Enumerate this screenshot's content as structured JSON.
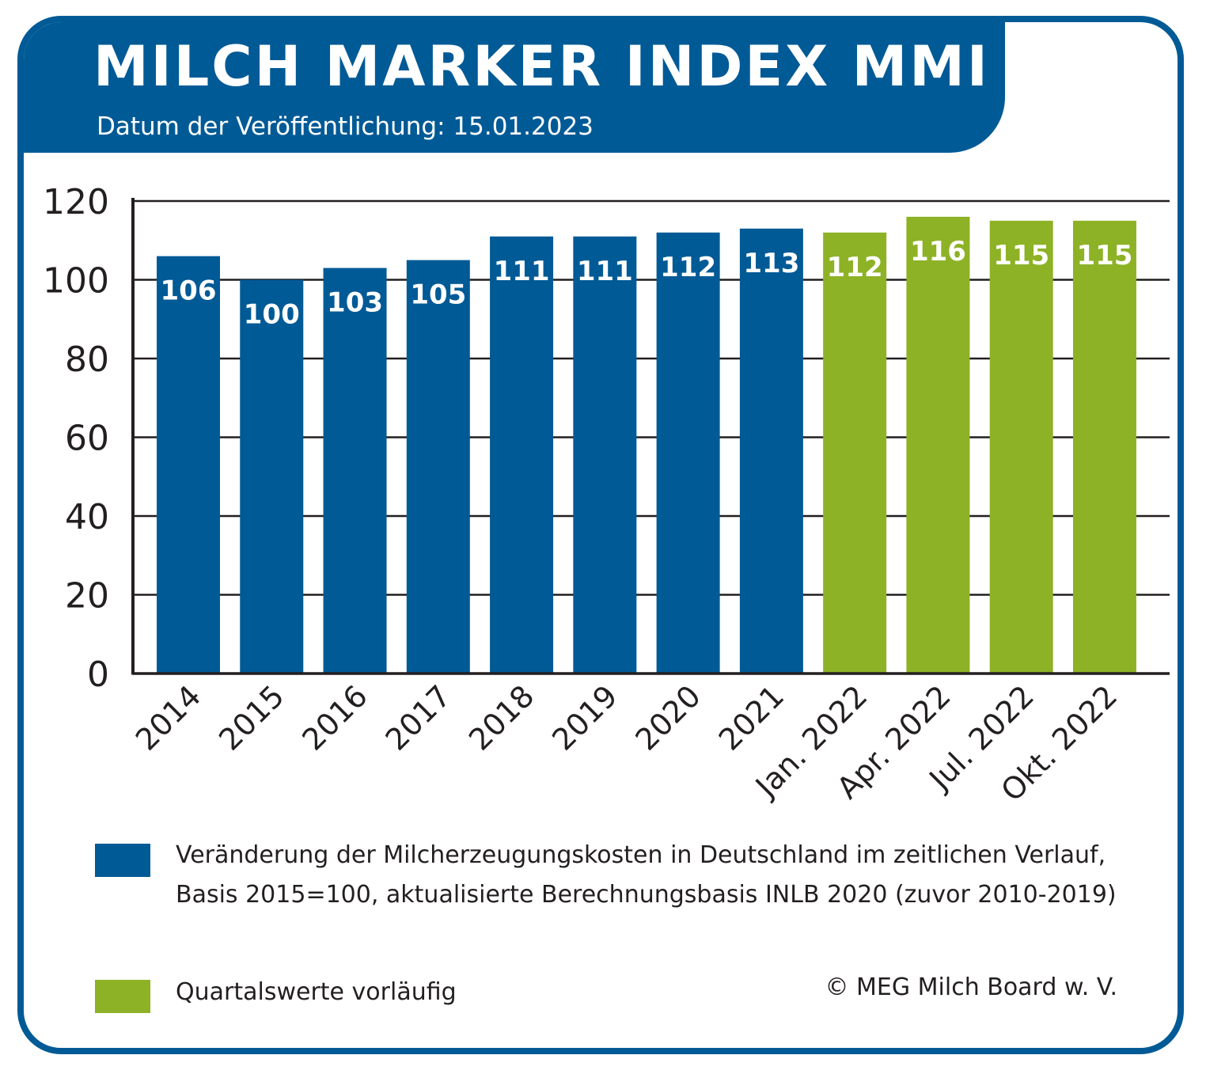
{
  "header": {
    "title": "MILCH MARKER INDEX MMI",
    "subtitle": "Datum der Veröffentlichung: 15.01.2023"
  },
  "chart_data": {
    "type": "bar",
    "categories": [
      "2014",
      "2015",
      "2016",
      "2017",
      "2018",
      "2019",
      "2020",
      "2021",
      "Jan. 2022",
      "Apr. 2022",
      "Jul. 2022",
      "Okt. 2022"
    ],
    "values": [
      106,
      100,
      103,
      105,
      111,
      111,
      112,
      113,
      112,
      116,
      115,
      115
    ],
    "series_group": [
      "annual",
      "annual",
      "annual",
      "annual",
      "annual",
      "annual",
      "annual",
      "annual",
      "quarterly",
      "quarterly",
      "quarterly",
      "quarterly"
    ],
    "ylim": [
      0,
      120
    ],
    "yticks": [
      0,
      20,
      40,
      60,
      80,
      100,
      120
    ],
    "grid": true,
    "colors": {
      "annual": "#005a96",
      "quarterly": "#8db226"
    }
  },
  "legend": {
    "annual": "Veränderung der Milcherzeugungskosten in Deutschland im zeitlichen Verlauf, Basis 2015=100, aktualisierte Berechnungsbasis INLB 2020 (zuvor 2010-2019)",
    "quarterly": "Quartalswerte vorläufig"
  },
  "copyright": "© MEG Milch Board w. V."
}
